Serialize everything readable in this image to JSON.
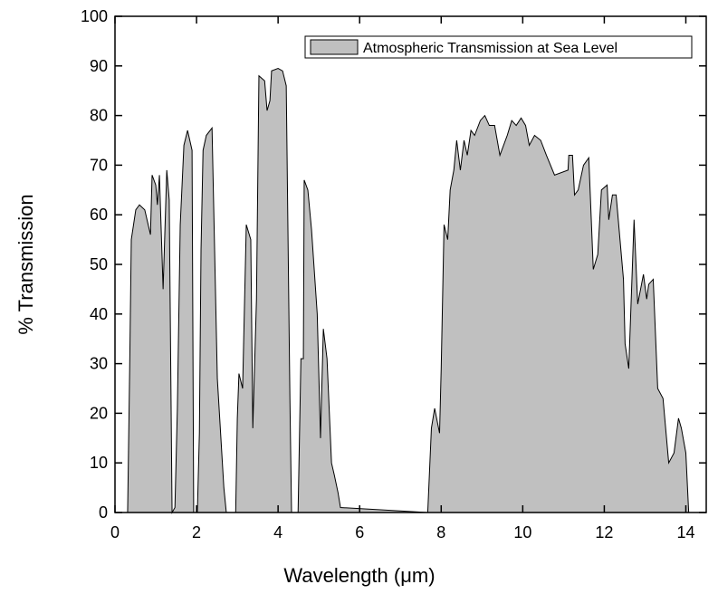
{
  "chart_data": {
    "type": "area",
    "xlabel": "Wavelength (μm)",
    "ylabel": "% Transmission",
    "x": [
      0.31,
      0.36,
      0.4,
      0.51,
      0.6,
      0.73,
      0.87,
      0.91,
      1.0,
      1.04,
      1.09,
      1.18,
      1.27,
      1.33,
      1.4,
      1.47,
      1.53,
      1.6,
      1.69,
      1.78,
      1.89,
      1.93,
      2.02,
      2.07,
      2.11,
      2.16,
      2.24,
      2.38,
      2.51,
      2.67,
      2.73,
      2.96,
      3.0,
      3.04,
      3.13,
      3.22,
      3.33,
      3.38,
      3.47,
      3.53,
      3.67,
      3.73,
      3.8,
      3.84,
      4.0,
      4.11,
      4.2,
      4.29,
      4.33,
      4.49,
      4.56,
      4.62,
      4.64,
      4.73,
      4.82,
      4.96,
      5.04,
      5.11,
      5.2,
      5.31,
      5.38,
      5.47,
      5.53,
      7.67,
      7.76,
      7.84,
      7.96,
      8.0,
      8.07,
      8.16,
      8.22,
      8.31,
      8.38,
      8.47,
      8.56,
      8.64,
      8.73,
      8.82,
      8.96,
      9.07,
      9.18,
      9.31,
      9.44,
      9.62,
      9.73,
      9.84,
      9.96,
      10.07,
      10.16,
      10.29,
      10.44,
      10.58,
      10.78,
      11.11,
      11.13,
      11.22,
      11.27,
      11.36,
      11.49,
      11.62,
      11.73,
      11.84,
      11.93,
      12.07,
      12.11,
      12.2,
      12.29,
      12.47,
      12.51,
      12.6,
      12.73,
      12.82,
      12.96,
      13.04,
      13.09,
      13.2,
      13.31,
      13.44,
      13.58,
      13.71,
      13.82,
      13.89,
      14.0,
      14.07
    ],
    "series": [
      {
        "name": "Atmospheric Transmission at Sea Level",
        "color": "#c0c0c0",
        "values": [
          0,
          29,
          55,
          61,
          62,
          61,
          56,
          68,
          66,
          62,
          68,
          45,
          69,
          63,
          0,
          1,
          21,
          58,
          74,
          77,
          73,
          0,
          0,
          16,
          53,
          73,
          76,
          77.5,
          27,
          5,
          0,
          0,
          19,
          28,
          25,
          58,
          55,
          17,
          43,
          88,
          87,
          81,
          83,
          89,
          89.5,
          89,
          86,
          23,
          0,
          0,
          31,
          31,
          67,
          65,
          57,
          40,
          15,
          37,
          31,
          10,
          7.5,
          4,
          1,
          0,
          17,
          21,
          16,
          29,
          58,
          55,
          65,
          69,
          75,
          69,
          75,
          72,
          77,
          76,
          79,
          80,
          78,
          78,
          72,
          76,
          79,
          78,
          79.5,
          78,
          74,
          76,
          75,
          72,
          68,
          69,
          72,
          72,
          64,
          65,
          70,
          71.5,
          49,
          52,
          65,
          66,
          59,
          64,
          64,
          47,
          34,
          29,
          59,
          42,
          48,
          43,
          46,
          47,
          25,
          23,
          10,
          12,
          19,
          17,
          12,
          0
        ]
      }
    ],
    "xlim": [
      0,
      14.5
    ],
    "ylim": [
      0,
      100
    ],
    "xticks": [
      0,
      2,
      4,
      6,
      8,
      10,
      12,
      14
    ],
    "yticks": [
      0,
      10,
      20,
      30,
      40,
      50,
      60,
      70,
      80,
      90,
      100
    ],
    "legend": "top-right"
  }
}
